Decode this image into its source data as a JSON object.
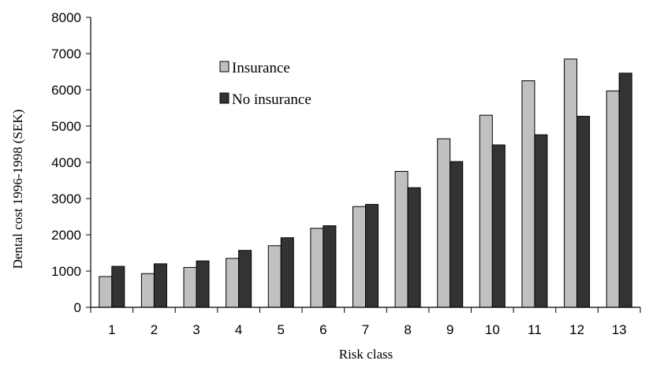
{
  "chart_data": {
    "type": "bar",
    "title": "",
    "xlabel": "Risk class",
    "ylabel": "Dental cost 1996-1998 (SEK)",
    "categories": [
      "1",
      "2",
      "3",
      "4",
      "5",
      "6",
      "7",
      "8",
      "9",
      "10",
      "11",
      "12",
      "13"
    ],
    "ylim": [
      0,
      8000
    ],
    "yticks": [
      0,
      1000,
      2000,
      3000,
      4000,
      5000,
      6000,
      7000,
      8000
    ],
    "grid": false,
    "legend_position": "top-left",
    "series": [
      {
        "name": "Insurance",
        "color": "#c0c0c0",
        "values": [
          850,
          930,
          1100,
          1350,
          1700,
          2180,
          2780,
          3750,
          4650,
          5300,
          6250,
          6850,
          5970
        ]
      },
      {
        "name": "No insurance",
        "color": "#333333",
        "values": [
          1130,
          1200,
          1280,
          1570,
          1920,
          2250,
          2840,
          3300,
          4020,
          4480,
          4760,
          5270,
          6460
        ]
      }
    ]
  }
}
